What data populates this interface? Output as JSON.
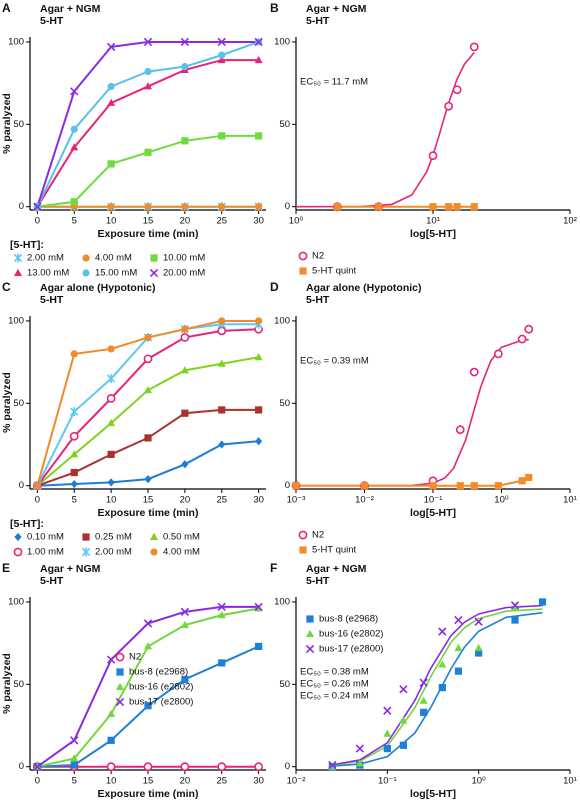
{
  "chart_data": [
    {
      "type": "line",
      "panel": "A",
      "title": "Agar + NGM",
      "subtitle": "5-HT",
      "xlabel": "Exposure time (min)",
      "ylabel": "% paralyzed",
      "x": [
        0,
        5,
        10,
        15,
        20,
        25,
        30
      ],
      "xlim": [
        -1,
        31
      ],
      "xticks": [
        0,
        5,
        10,
        15,
        20,
        25,
        30
      ],
      "ylim": [
        -2,
        103
      ],
      "yticks": [
        0,
        50,
        100
      ],
      "legend": "below",
      "legend_title": "[5-HT]:",
      "series": [
        {
          "name": "2.00 mM",
          "color": "#5bc8f5",
          "marker": "star",
          "values": [
            0,
            0,
            0,
            0,
            0,
            0,
            0
          ]
        },
        {
          "name": "4.00 mM",
          "color": "#f28c28",
          "marker": "circle",
          "values": [
            0,
            0,
            0,
            0,
            0,
            0,
            0
          ]
        },
        {
          "name": "10.00 mM",
          "color": "#6edc3c",
          "marker": "square",
          "values": [
            0,
            3,
            26,
            33,
            40,
            43,
            43
          ]
        },
        {
          "name": "13.00 mM",
          "color": "#e5247a",
          "marker": "triangle",
          "values": [
            0,
            36,
            63,
            73,
            83,
            89,
            89
          ]
        },
        {
          "name": "15.00 mM",
          "color": "#5bc0eb",
          "marker": "circle",
          "values": [
            0,
            47,
            73,
            82,
            85,
            92,
            100
          ]
        },
        {
          "name": "20.00 mM",
          "color": "#8a2be2",
          "marker": "x",
          "values": [
            0,
            70,
            97,
            100,
            100,
            100,
            100
          ]
        }
      ]
    },
    {
      "type": "scatter",
      "panel": "B",
      "title": "Agar + NGM",
      "subtitle": "5-HT",
      "xlabel": "log[5-HT]",
      "xscale": "log",
      "x": [
        2,
        4,
        10,
        13,
        15,
        20
      ],
      "xlim": [
        1,
        100
      ],
      "xticks": [
        {
          "value": 1,
          "label": "10⁰"
        },
        {
          "value": 10,
          "label": "10¹"
        },
        {
          "value": 100,
          "label": "10²"
        }
      ],
      "ylim": [
        -2,
        103
      ],
      "yticks": [
        0,
        50,
        100
      ],
      "legend": "below",
      "annotations": [
        {
          "text": "EC₅₀ = 11.7 mM",
          "color": "#e5247a"
        }
      ],
      "series": [
        {
          "name": "N2",
          "color": "#e5247a",
          "marker": "open-circle",
          "values": [
            0,
            0,
            31,
            61,
            71,
            97
          ],
          "fit": {
            "x": [
              1,
              3,
              5,
              7,
              9,
              10,
              11,
              12,
              13,
              15,
              17,
              20
            ],
            "values": [
              0,
              0.1,
              1.4,
              7.1,
              21.2,
              31.3,
              42.4,
              53.2,
              62.9,
              77.6,
              86.6,
              93.6
            ]
          }
        },
        {
          "name": "5-HT quint",
          "color": "#f28c28",
          "marker": "square",
          "connect": true,
          "values": [
            0,
            0,
            0,
            0,
            0,
            0
          ]
        }
      ]
    },
    {
      "type": "line",
      "panel": "C",
      "title": "Agar alone (Hypotonic)",
      "subtitle": "5-HT",
      "xlabel": "Exposure time (min)",
      "ylabel": "% paralyzed",
      "x": [
        0,
        5,
        10,
        15,
        20,
        25,
        30
      ],
      "xlim": [
        -1,
        31
      ],
      "xticks": [
        0,
        5,
        10,
        15,
        20,
        25,
        30
      ],
      "ylim": [
        -2,
        103
      ],
      "yticks": [
        0,
        50,
        100
      ],
      "legend": "below",
      "legend_title": "[5-HT]:",
      "series": [
        {
          "name": "0.10 mM",
          "color": "#1f7bd6",
          "marker": "diamond",
          "values": [
            0,
            1,
            2,
            4,
            13,
            25,
            27
          ]
        },
        {
          "name": "0.25 mM",
          "color": "#a8322d",
          "marker": "square",
          "values": [
            0,
            8,
            19,
            29,
            44,
            46,
            46
          ]
        },
        {
          "name": "0.50 mM",
          "color": "#7ed321",
          "marker": "triangle",
          "values": [
            0,
            19,
            38,
            58,
            70,
            74,
            78
          ]
        },
        {
          "name": "1.00 mM",
          "color": "#e5247a",
          "marker": "open-circle",
          "values": [
            0,
            30,
            53,
            77,
            90,
            94,
            95
          ]
        },
        {
          "name": "2.00 mM",
          "color": "#5bc8f5",
          "marker": "star",
          "values": [
            0,
            45,
            65,
            90,
            95,
            98,
            98
          ]
        },
        {
          "name": "4.00 mM",
          "color": "#f08a2c",
          "marker": "circle",
          "values": [
            0,
            80,
            83,
            90,
            95,
            100,
            100
          ]
        }
      ]
    },
    {
      "type": "scatter",
      "panel": "D",
      "title": "Agar alone (Hypotonic)",
      "subtitle": "5-HT",
      "xlabel": "log[5-HT]",
      "xscale": "log",
      "x": [
        0.001,
        0.01,
        0.1,
        0.25,
        0.4,
        0.9,
        2,
        2.5
      ],
      "xlim": [
        0.001,
        10
      ],
      "xticks": [
        {
          "value": 0.001,
          "label": "10⁻³"
        },
        {
          "value": 0.01,
          "label": "10⁻²"
        },
        {
          "value": 0.1,
          "label": "10⁻¹"
        },
        {
          "value": 1,
          "label": "10⁰"
        },
        {
          "value": 10,
          "label": "10¹"
        }
      ],
      "ylim": [
        -2,
        103
      ],
      "yticks": [
        0,
        50,
        100
      ],
      "legend": "below",
      "annotations": [
        {
          "text": "EC₅₀ = 0.39 mM",
          "color": "#e5247a"
        }
      ],
      "series": [
        {
          "name": "N2",
          "color": "#e5247a",
          "marker": "open-circle",
          "values": [
            0,
            0,
            3,
            34,
            69,
            80,
            89,
            95
          ],
          "fit": {
            "x": [
              0.001,
              0.01,
              0.05,
              0.1,
              0.15,
              0.2,
              0.3,
              0.4,
              0.5,
              0.7,
              1,
              2,
              2.5
            ],
            "values": [
              0,
              0,
              0.2,
              1.5,
              4.8,
              10.6,
              27.8,
              46.2,
              60.3,
              75.9,
              84,
              88.3,
              88.7
            ]
          }
        },
        {
          "name": "5-HT quint",
          "color": "#f28c28",
          "marker": "square",
          "connect": true,
          "values": [
            0,
            0,
            0,
            0,
            0,
            0,
            3,
            5
          ]
        }
      ]
    },
    {
      "type": "line",
      "panel": "E",
      "title": "Agar + NGM",
      "subtitle": "5-HT",
      "xlabel": "Exposure time (min)",
      "ylabel": "% paralyzed",
      "x": [
        0,
        5,
        10,
        15,
        20,
        25,
        30
      ],
      "xlim": [
        -1,
        31
      ],
      "xticks": [
        0,
        5,
        10,
        15,
        20,
        25,
        30
      ],
      "ylim": [
        -2,
        103
      ],
      "yticks": [
        0,
        50,
        100
      ],
      "legend": "center right",
      "series": [
        {
          "name": "N2",
          "color": "#e5247a",
          "marker": "open-circle",
          "values": [
            0,
            0,
            0,
            0,
            0,
            0,
            0
          ]
        },
        {
          "name": "bus-8 (e2968)",
          "color": "#1e7fd8",
          "marker": "square",
          "values": [
            0,
            1,
            16,
            37,
            53,
            63,
            73
          ]
        },
        {
          "name": "bus-16 (e2802)",
          "color": "#6fd83a",
          "marker": "triangle",
          "values": [
            0,
            5,
            32,
            73,
            86,
            92,
            96
          ]
        },
        {
          "name": "bus-17 (e2800)",
          "color": "#8a2be2",
          "marker": "x",
          "values": [
            0,
            16,
            65,
            87,
            94,
            97,
            97
          ]
        }
      ]
    },
    {
      "type": "scatter",
      "panel": "F",
      "title": "Agar + NGM",
      "subtitle": "5-HT",
      "xlabel": "log[5-HT]",
      "xscale": "log",
      "x": [
        0.025,
        0.05,
        0.1,
        0.15,
        0.25,
        0.4,
        0.6,
        1,
        2.5,
        5
      ],
      "xlim": [
        0.01,
        10
      ],
      "xticks": [
        {
          "value": 0.01,
          "label": "10⁻²"
        },
        {
          "value": 0.1,
          "label": "10⁻¹"
        },
        {
          "value": 1,
          "label": "10⁰"
        },
        {
          "value": 10,
          "label": "10¹"
        }
      ],
      "ylim": [
        -2,
        103
      ],
      "yticks": [
        0,
        50,
        100
      ],
      "legend": "upper left",
      "annotations": [
        {
          "text": "EC₅₀ = 0.38 mM",
          "color": "#1e7fd8"
        },
        {
          "text": "EC₅₀ = 0.26 mM",
          "color": "#6fd83a"
        },
        {
          "text": "EC₅₀ = 0.24 mM",
          "color": "#8a2be2"
        }
      ],
      "series": [
        {
          "name": "bus-8 (e2968)",
          "color": "#1e7fd8",
          "marker": "square",
          "values": [
            0,
            1,
            11,
            13,
            33,
            48,
            58,
            69,
            89,
            100
          ],
          "fit": {
            "x": [
              0.025,
              0.05,
              0.1,
              0.2,
              0.3,
              0.5,
              0.7,
              1,
              2,
              5
            ],
            "values": [
              0.4,
              1.6,
              6.1,
              20.4,
              36.1,
              59.6,
              72.6,
              82.2,
              90.7,
              93.5
            ]
          }
        },
        {
          "name": "bus-16 (e2802)",
          "color": "#6fd83a",
          "marker": "triangle",
          "values": [
            0,
            2,
            20,
            28,
            40,
            62,
            72,
            72,
            97,
            null
          ],
          "fit": {
            "x": [
              0.025,
              0.05,
              0.1,
              0.2,
              0.3,
              0.5,
              0.7,
              1,
              2,
              5
            ],
            "values": [
              0.9,
              3.4,
              12.4,
              35.7,
              54.8,
              75.6,
              84.4,
              89.9,
              94.4,
              95.7
            ]
          }
        },
        {
          "name": "bus-17 (e2800)",
          "color": "#8a2be2",
          "marker": "x",
          "values": [
            1,
            11,
            34,
            47,
            51,
            82,
            89,
            88,
            98,
            null
          ],
          "fit": {
            "x": [
              0.025,
              0.05,
              0.1,
              0.2,
              0.3,
              0.5,
              0.7,
              1,
              2,
              5
            ],
            "values": [
              1.1,
              4.1,
              14.5,
              40.2,
              59.8,
              79.7,
              87.7,
              92.7,
              96.6,
              97.8
            ]
          }
        }
      ]
    }
  ]
}
